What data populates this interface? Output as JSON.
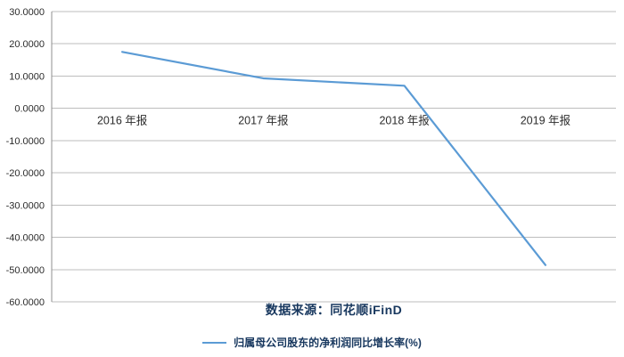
{
  "chart_data": {
    "type": "line",
    "categories": [
      "2016 年报",
      "2017 年报",
      "2018 年报",
      "2019 年报"
    ],
    "series": [
      {
        "name": "归属母公司股东的净利润同比增长率(%)",
        "values": [
          17.5,
          9.3,
          7.0,
          -48.6
        ],
        "color": "#5B9BD5"
      }
    ],
    "title": "",
    "xlabel": "",
    "ylabel": "",
    "ylim": [
      -60,
      30
    ],
    "ytick_labels": [
      "30.0000",
      "20.0000",
      "10.0000",
      "0.0000",
      "-10.0000",
      "-20.0000",
      "-30.0000",
      "-40.0000",
      "-50.0000",
      "-60.0000"
    ],
    "grid": true,
    "legend_position": "bottom",
    "x_labels_below_zero_line": true
  },
  "source_note": {
    "text": "数据来源：同花顺iFinD",
    "color": "#17375E"
  },
  "legend": {
    "label": "归属母公司股东的净利润同比增长率(%)",
    "swatch_color": "#5B9BD5",
    "text_color": "#17375E"
  },
  "style": {
    "background": "#FFFFFF",
    "grid_color": "#BDBDBD",
    "axis_color": "#8F8F8F",
    "tick_text_color": "#2B2B2B",
    "category_text_color": "#2B2B2B"
  }
}
